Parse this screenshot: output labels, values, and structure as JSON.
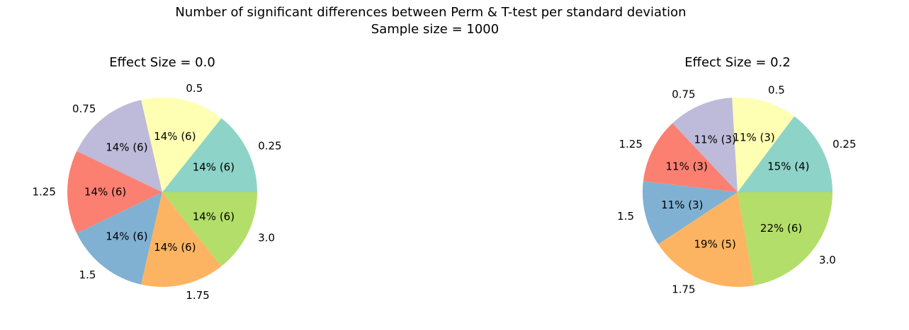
{
  "figure": {
    "suptitle_line1": "Number of significant differences between Perm & T-test per standard deviation",
    "suptitle_line2": "Sample size = 1000"
  },
  "chart_data": [
    {
      "type": "pie",
      "title": "Effect Size =  0.0",
      "start_angle_deg": 0,
      "direction": "counterclockwise",
      "slices": [
        {
          "label": "0.25",
          "count": 6,
          "percent_label": "14% (6)",
          "color": "#8dd3c7"
        },
        {
          "label": "0.5",
          "count": 6,
          "percent_label": "14% (6)",
          "color": "#ffffb3"
        },
        {
          "label": "0.75",
          "count": 6,
          "percent_label": "14% (6)",
          "color": "#bebada"
        },
        {
          "label": "1.25",
          "count": 6,
          "percent_label": "14% (6)",
          "color": "#fb8072"
        },
        {
          "label": "1.5",
          "count": 6,
          "percent_label": "14% (6)",
          "color": "#80b1d3"
        },
        {
          "label": "1.75",
          "count": 6,
          "percent_label": "14% (6)",
          "color": "#fdb462"
        },
        {
          "label": "3.0",
          "count": 6,
          "percent_label": "14% (6)",
          "color": "#b3de69"
        }
      ]
    },
    {
      "type": "pie",
      "title": "Effect Size =  0.2",
      "start_angle_deg": 0,
      "direction": "counterclockwise",
      "slices": [
        {
          "label": "0.25",
          "count": 4,
          "percent_label": "15% (4)",
          "color": "#8dd3c7"
        },
        {
          "label": "0.5",
          "count": 3,
          "percent_label": "11% (3)",
          "color": "#ffffb3"
        },
        {
          "label": "0.75",
          "count": 3,
          "percent_label": "11% (3)",
          "color": "#bebada"
        },
        {
          "label": "1.25",
          "count": 3,
          "percent_label": "11% (3)",
          "color": "#fb8072"
        },
        {
          "label": "1.5",
          "count": 3,
          "percent_label": "11% (3)",
          "color": "#80b1d3"
        },
        {
          "label": "1.75",
          "count": 5,
          "percent_label": "19% (5)",
          "color": "#fdb462"
        },
        {
          "label": "3.0",
          "count": 6,
          "percent_label": "22% (6)",
          "color": "#b3de69"
        }
      ]
    }
  ]
}
